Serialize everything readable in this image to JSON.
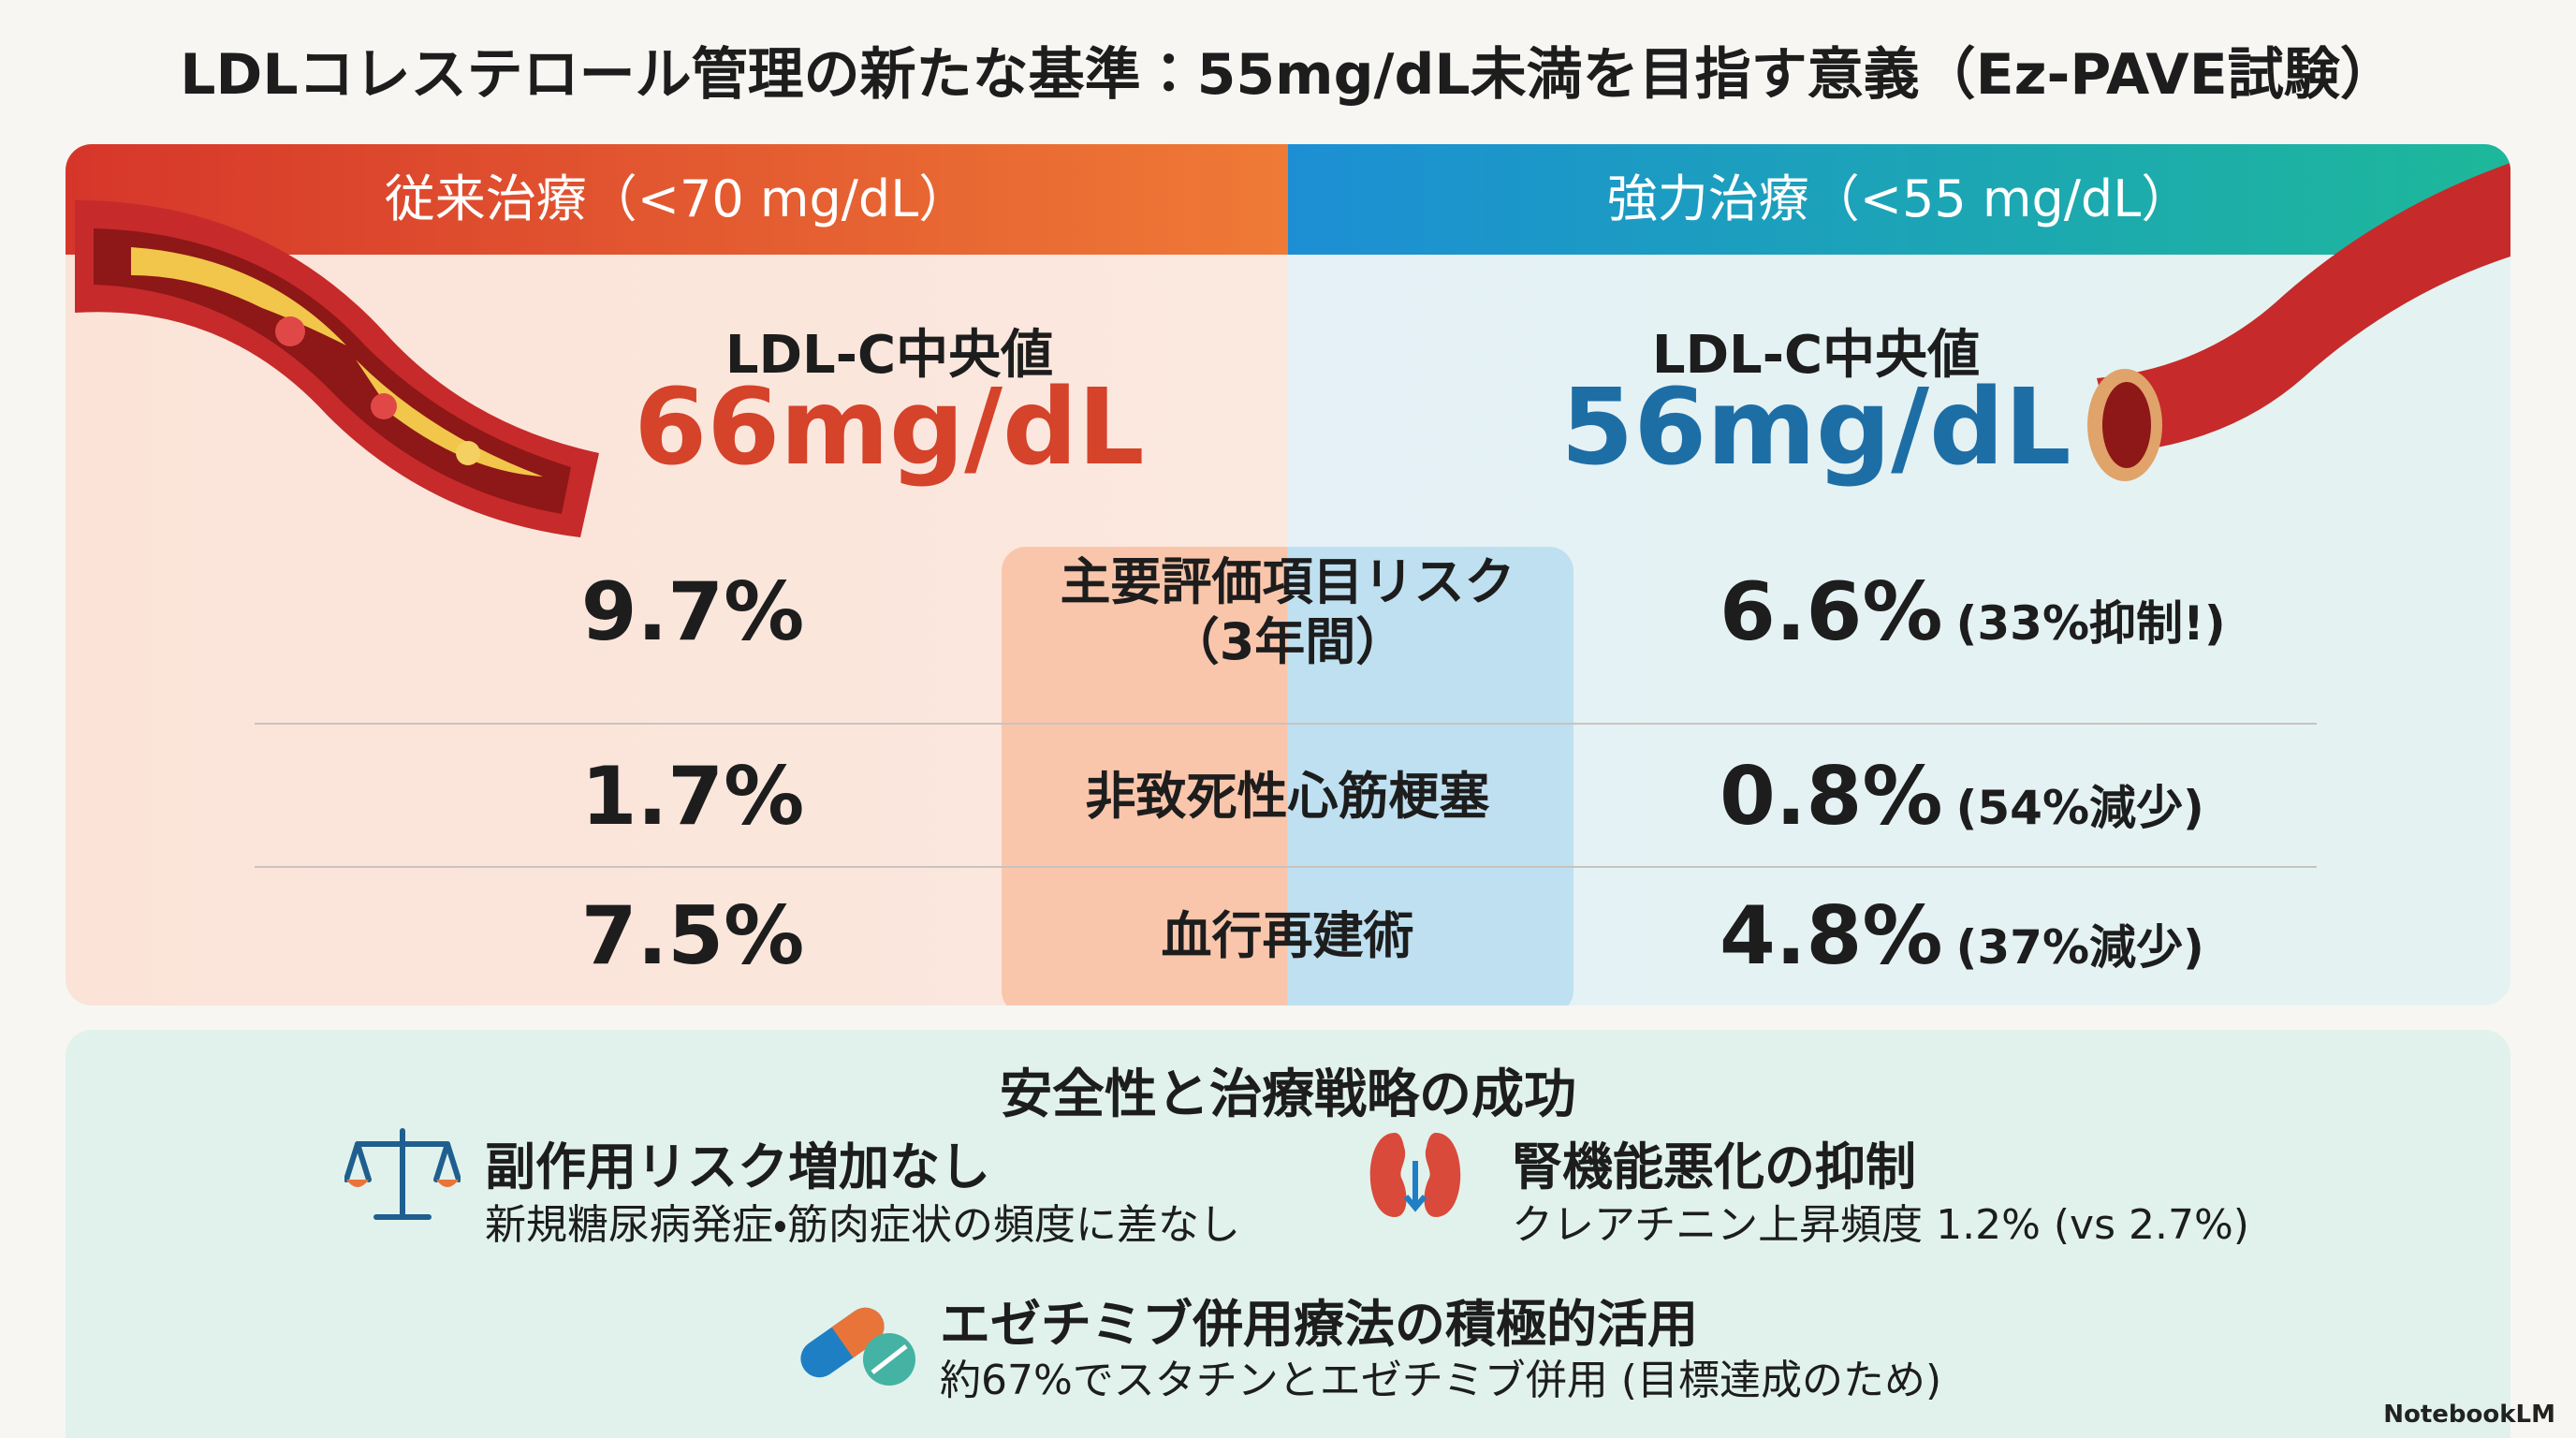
{
  "title": "LDLコレステロール管理の新たな基準：55mg/dL未満を目指す意義（Ez-PAVE試験）",
  "comparison": {
    "left": {
      "header": "従来治療（<70 mg/dL）",
      "median_label": "LDL-C中央値",
      "median_value": "66mg/dL"
    },
    "right": {
      "header": "強力治療（<55 mg/dL）",
      "median_label": "LDL-C中央値",
      "median_value": "56mg/dL"
    },
    "rows": [
      {
        "left": "9.7%",
        "label": [
          "主要評価項目リスク",
          "（3年間）"
        ],
        "right": "6.6%",
        "note": "(33%抑制!)"
      },
      {
        "left": "1.7%",
        "label": [
          "非致死性心筋梗塞"
        ],
        "right": "0.8%",
        "note": "(54%減少)"
      },
      {
        "left": "7.5%",
        "label": [
          "血行再建術"
        ],
        "right": "4.8%",
        "note": "(37%減少)"
      }
    ]
  },
  "safety": {
    "title": "安全性と治療戦略の成功",
    "items": [
      {
        "title": "副作用リスク増加なし",
        "text": "新規糖尿病発症・筋肉症状の頻度に差なし"
      },
      {
        "title": "腎機能悪化の抑制",
        "text": "クレアチニン上昇頻度 1.2% (vs 2.7%)"
      },
      {
        "title": "エゼチミブ併用療法の積極的活用",
        "text": "約67%でスタチンとエゼチミブ併用 (目標達成のため)"
      }
    ]
  },
  "footer": {
    "brand": "NotebookLM"
  }
}
